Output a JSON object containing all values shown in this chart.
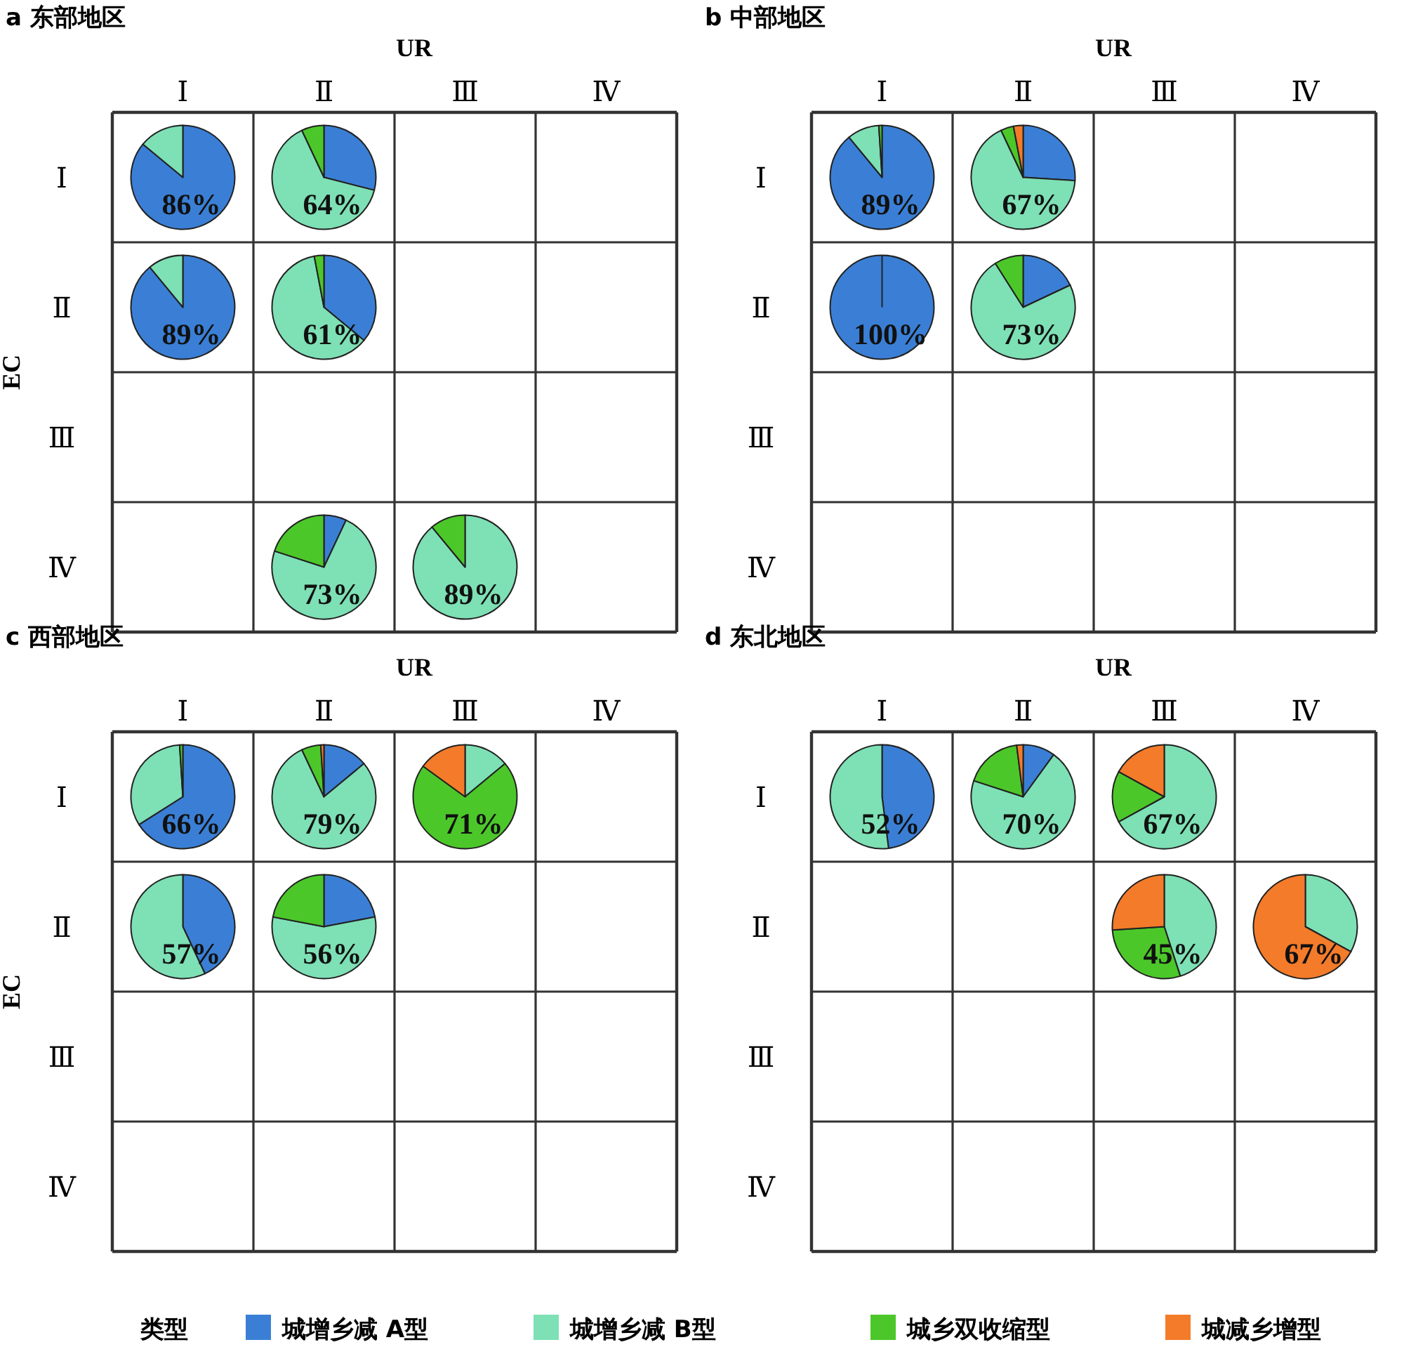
{
  "chart_data": [
    {
      "type": "other",
      "title": "a 东部地区",
      "xlabel": "UR",
      "ylabel": "EC",
      "categories": [
        "Ⅰ",
        "Ⅱ",
        "Ⅲ",
        "Ⅳ"
      ],
      "y_categories": [
        "Ⅰ",
        "Ⅱ",
        "Ⅲ",
        "Ⅳ"
      ],
      "cell_labels": [
        [
          "86%",
          "64%",
          null,
          null
        ],
        [
          "89%",
          "61%",
          null,
          null
        ],
        [
          null,
          null,
          null,
          null
        ],
        [
          null,
          "73%",
          "89%",
          null
        ]
      ]
    },
    {
      "type": "pie",
      "values": [
        86,
        14
      ],
      "colors": [
        "#3a7fd5",
        "#7ee0b5"
      ]
    },
    {
      "type": "pie",
      "values": [
        29,
        64,
        7
      ],
      "colors": [
        "#3a7fd5",
        "#7ee0b5",
        "#4cc72a"
      ]
    },
    {
      "type": "pie",
      "values": [
        89,
        11
      ],
      "colors": [
        "#3a7fd5",
        "#7ee0b5"
      ]
    },
    {
      "type": "pie",
      "values": [
        36,
        61,
        3
      ],
      "colors": [
        "#3a7fd5",
        "#7ee0b5",
        "#4cc72a"
      ]
    },
    {
      "type": "pie",
      "values": [
        7,
        73,
        20
      ],
      "colors": [
        "#3a7fd5",
        "#7ee0b5",
        "#4cc72a"
      ]
    },
    {
      "type": "pie",
      "values": [
        89,
        11
      ],
      "colors": [
        "#7ee0b5",
        "#4cc72a"
      ]
    },
    {
      "type": "other",
      "title": "b 中部地区",
      "xlabel": "UR",
      "categories": [
        "Ⅰ",
        "Ⅱ",
        "Ⅲ",
        "Ⅳ"
      ],
      "y_categories": [
        "Ⅰ",
        "Ⅱ",
        "Ⅲ",
        "Ⅳ"
      ],
      "cell_labels": [
        [
          "89%",
          "67%",
          null,
          null
        ],
        [
          "100%",
          "73%",
          null,
          null
        ],
        [
          null,
          null,
          null,
          null
        ],
        [
          null,
          null,
          null,
          null
        ]
      ]
    },
    {
      "type": "pie",
      "values": [
        89,
        10,
        1
      ],
      "colors": [
        "#3a7fd5",
        "#7ee0b5",
        "#4cc72a"
      ]
    },
    {
      "type": "pie",
      "values": [
        26,
        67,
        4,
        3
      ],
      "colors": [
        "#3a7fd5",
        "#7ee0b5",
        "#4cc72a",
        "#f47b2a"
      ]
    },
    {
      "type": "pie",
      "values": [
        100
      ],
      "colors": [
        "#3a7fd5"
      ]
    },
    {
      "type": "pie",
      "values": [
        18,
        73,
        9
      ],
      "colors": [
        "#3a7fd5",
        "#7ee0b5",
        "#4cc72a"
      ]
    },
    {
      "type": "other",
      "title": "c 西部地区",
      "xlabel": "UR",
      "ylabel": "EC",
      "categories": [
        "Ⅰ",
        "Ⅱ",
        "Ⅲ",
        "Ⅳ"
      ],
      "y_categories": [
        "Ⅰ",
        "Ⅱ",
        "Ⅲ",
        "Ⅳ"
      ],
      "cell_labels": [
        [
          "66%",
          "79%",
          "71%",
          null
        ],
        [
          "57%",
          "56%",
          null,
          null
        ],
        [
          null,
          null,
          null,
          null
        ],
        [
          null,
          null,
          null,
          null
        ]
      ]
    },
    {
      "type": "pie",
      "values": [
        66,
        33,
        1
      ],
      "colors": [
        "#3a7fd5",
        "#7ee0b5",
        "#4cc72a"
      ]
    },
    {
      "type": "pie",
      "values": [
        14,
        79,
        6,
        1
      ],
      "colors": [
        "#3a7fd5",
        "#7ee0b5",
        "#4cc72a",
        "#f47b2a"
      ]
    },
    {
      "type": "pie",
      "values": [
        14,
        71,
        15
      ],
      "colors": [
        "#7ee0b5",
        "#4cc72a",
        "#f47b2a"
      ]
    },
    {
      "type": "pie",
      "values": [
        43,
        57
      ],
      "colors": [
        "#3a7fd5",
        "#7ee0b5"
      ]
    },
    {
      "type": "pie",
      "values": [
        22,
        56,
        22
      ],
      "colors": [
        "#3a7fd5",
        "#7ee0b5",
        "#4cc72a"
      ]
    },
    {
      "type": "other",
      "title": "d 东北地区",
      "xlabel": "UR",
      "categories": [
        "Ⅰ",
        "Ⅱ",
        "Ⅲ",
        "Ⅳ"
      ],
      "y_categories": [
        "Ⅰ",
        "Ⅱ",
        "Ⅲ",
        "Ⅳ"
      ],
      "cell_labels": [
        [
          "52%",
          "70%",
          "67%",
          null
        ],
        [
          null,
          null,
          "45%",
          "67%"
        ],
        [
          null,
          null,
          null,
          null
        ],
        [
          null,
          null,
          null,
          null
        ]
      ]
    },
    {
      "type": "pie",
      "values": [
        48,
        52
      ],
      "colors": [
        "#3a7fd5",
        "#7ee0b5"
      ]
    },
    {
      "type": "pie",
      "values": [
        10,
        70,
        18,
        2
      ],
      "colors": [
        "#3a7fd5",
        "#7ee0b5",
        "#4cc72a",
        "#f47b2a"
      ]
    },
    {
      "type": "pie",
      "values": [
        67,
        16,
        17
      ],
      "colors": [
        "#7ee0b5",
        "#4cc72a",
        "#f47b2a"
      ]
    },
    {
      "type": "pie",
      "values": [
        45,
        29,
        26
      ],
      "colors": [
        "#7ee0b5",
        "#4cc72a",
        "#f47b2a"
      ]
    },
    {
      "type": "pie",
      "values": [
        33,
        67
      ],
      "colors": [
        "#7ee0b5",
        "#f47b2a"
      ]
    },
    {
      "type": "other",
      "legend_title": "类型",
      "categories": [
        "城增乡减 A型",
        "城增乡减 B型",
        "城乡双收缩型",
        "城减乡增型"
      ],
      "colors": [
        "#3a7fd5",
        "#7ee0b5",
        "#4cc72a",
        "#f47b2a"
      ]
    }
  ]
}
